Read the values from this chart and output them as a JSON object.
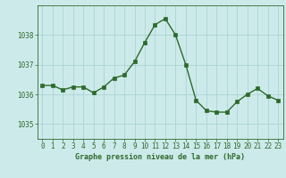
{
  "x": [
    0,
    1,
    2,
    3,
    4,
    5,
    6,
    7,
    8,
    9,
    10,
    11,
    12,
    13,
    14,
    15,
    16,
    17,
    18,
    19,
    20,
    21,
    22,
    23
  ],
  "y": [
    1036.3,
    1036.3,
    1036.15,
    1036.25,
    1036.25,
    1036.05,
    1036.25,
    1036.55,
    1036.65,
    1037.1,
    1037.75,
    1038.35,
    1038.55,
    1038.0,
    1037.0,
    1035.8,
    1035.45,
    1035.4,
    1035.4,
    1035.75,
    1036.0,
    1036.2,
    1035.95,
    1035.8
  ],
  "line_color": "#2d6a2d",
  "marker": "s",
  "markersize": 2.2,
  "linewidth": 1.0,
  "background_color": "#cdeaea",
  "grid_color": "#aad4d4",
  "axis_color": "#2d6a2d",
  "tick_color": "#2d6a2d",
  "label_color": "#2d6a2d",
  "xlabel": "Graphe pression niveau de la mer (hPa)",
  "tick_fontsize": 5.5,
  "xlabel_fontsize": 6.0,
  "ylim": [
    1034.5,
    1039.0
  ],
  "yticks": [
    1035,
    1036,
    1037,
    1038
  ],
  "xlim": [
    -0.5,
    23.5
  ],
  "xticks": [
    0,
    1,
    2,
    3,
    4,
    5,
    6,
    7,
    8,
    9,
    10,
    11,
    12,
    13,
    14,
    15,
    16,
    17,
    18,
    19,
    20,
    21,
    22,
    23
  ]
}
